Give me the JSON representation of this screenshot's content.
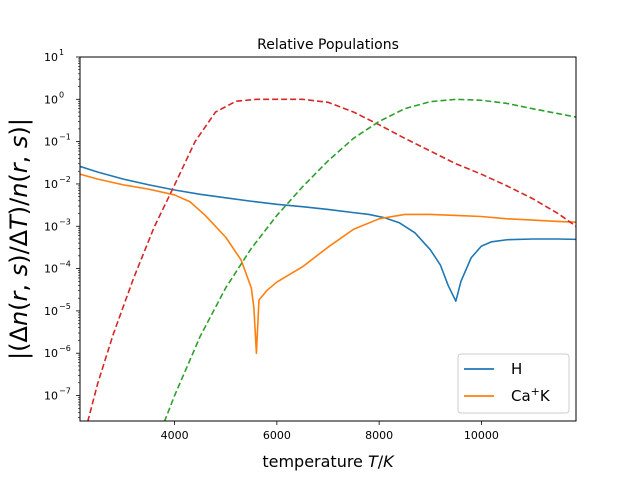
{
  "chart_data": {
    "type": "line",
    "title": "Relative Populations",
    "xlabel": "temperature T/K",
    "ylabel": "|(Δn(r,s)/ΔT)/n(r,s)|",
    "xlim": [
      2150,
      11850
    ],
    "ylim": [
      2.5e-08,
      10
    ],
    "yscale": "log",
    "grid": false,
    "legend_position": "lower-right",
    "x_ticks": [
      {
        "value": 4000,
        "label": "4000"
      },
      {
        "value": 6000,
        "label": "6000"
      },
      {
        "value": 8000,
        "label": "8000"
      },
      {
        "value": 10000,
        "label": "10000"
      }
    ],
    "y_ticks": [
      {
        "value": 1e-07,
        "base": "10",
        "exp": "−7"
      },
      {
        "value": 1e-06,
        "base": "10",
        "exp": "−6"
      },
      {
        "value": 1e-05,
        "base": "10",
        "exp": "−5"
      },
      {
        "value": 0.0001,
        "base": "10",
        "exp": "−4"
      },
      {
        "value": 0.001,
        "base": "10",
        "exp": "−3"
      },
      {
        "value": 0.01,
        "base": "10",
        "exp": "−2"
      },
      {
        "value": 0.1,
        "base": "10",
        "exp": "−1"
      },
      {
        "value": 1,
        "base": "10",
        "exp": "0"
      },
      {
        "value": 10,
        "base": "10",
        "exp": "1"
      }
    ],
    "series": [
      {
        "name": "H",
        "color": "#1f77b4",
        "style": "solid",
        "legend": true,
        "points": [
          [
            2150,
            0.026
          ],
          [
            2500,
            0.019
          ],
          [
            3000,
            0.013
          ],
          [
            3500,
            0.0095
          ],
          [
            4000,
            0.0072
          ],
          [
            4500,
            0.0057
          ],
          [
            5000,
            0.0047
          ],
          [
            5500,
            0.0039
          ],
          [
            6000,
            0.0033
          ],
          [
            6500,
            0.0029
          ],
          [
            7000,
            0.0025
          ],
          [
            7500,
            0.0021
          ],
          [
            7800,
            0.0019
          ],
          [
            8100,
            0.0016
          ],
          [
            8400,
            0.0012
          ],
          [
            8700,
            0.0007
          ],
          [
            9000,
            0.00028
          ],
          [
            9200,
            0.00012
          ],
          [
            9350,
            4e-05
          ],
          [
            9500,
            1.7e-05
          ],
          [
            9600,
            5e-05
          ],
          [
            9800,
            0.00018
          ],
          [
            10000,
            0.00034
          ],
          [
            10200,
            0.00043
          ],
          [
            10500,
            0.00048
          ],
          [
            11000,
            0.0005
          ],
          [
            11500,
            0.0005
          ],
          [
            11850,
            0.00049
          ]
        ]
      },
      {
        "name": "Ca⁺K",
        "color": "#ff7f0e",
        "style": "solid",
        "legend": true,
        "points": [
          [
            2150,
            0.017
          ],
          [
            2500,
            0.013
          ],
          [
            3000,
            0.0095
          ],
          [
            3500,
            0.0075
          ],
          [
            4000,
            0.0055
          ],
          [
            4300,
            0.0038
          ],
          [
            4600,
            0.0018
          ],
          [
            5000,
            0.00055
          ],
          [
            5300,
            0.00016
          ],
          [
            5500,
            3.5e-05
          ],
          [
            5550,
            1.2e-05
          ],
          [
            5600,
            1e-06
          ],
          [
            5650,
            1.8e-05
          ],
          [
            5800,
            3e-05
          ],
          [
            6000,
            4.8e-05
          ],
          [
            6500,
            0.00011
          ],
          [
            7000,
            0.00032
          ],
          [
            7500,
            0.00085
          ],
          [
            8000,
            0.0015
          ],
          [
            8500,
            0.0019
          ],
          [
            9000,
            0.0019
          ],
          [
            9500,
            0.0018
          ],
          [
            10000,
            0.0017
          ],
          [
            10500,
            0.0015
          ],
          [
            11000,
            0.0014
          ],
          [
            11500,
            0.0013
          ],
          [
            11850,
            0.00125
          ]
        ]
      },
      {
        "name": "",
        "color": "#d62728",
        "style": "dashed",
        "legend": false,
        "points": [
          [
            2300,
            2.4e-08
          ],
          [
            2500,
            2e-07
          ],
          [
            2800,
            2.8e-06
          ],
          [
            3200,
            6e-05
          ],
          [
            3600,
            0.00095
          ],
          [
            4000,
            0.0095
          ],
          [
            4400,
            0.1
          ],
          [
            4800,
            0.5
          ],
          [
            5200,
            0.9
          ],
          [
            5600,
            1.0
          ],
          [
            6000,
            1.0
          ],
          [
            6500,
            1.0
          ],
          [
            7000,
            0.85
          ],
          [
            7500,
            0.5
          ],
          [
            8000,
            0.25
          ],
          [
            8500,
            0.12
          ],
          [
            9000,
            0.06
          ],
          [
            9500,
            0.03
          ],
          [
            10000,
            0.017
          ],
          [
            10500,
            0.009
          ],
          [
            11000,
            0.0045
          ],
          [
            11500,
            0.002
          ],
          [
            11850,
            0.001
          ]
        ]
      },
      {
        "name": "",
        "color": "#2ca02c",
        "style": "dashed",
        "legend": false,
        "points": [
          [
            3800,
            2.4e-08
          ],
          [
            4000,
            1e-07
          ],
          [
            4500,
            2.5e-06
          ],
          [
            5000,
            3.5e-05
          ],
          [
            5500,
            0.0003
          ],
          [
            6000,
            0.0018
          ],
          [
            6500,
            0.0085
          ],
          [
            7000,
            0.035
          ],
          [
            7500,
            0.12
          ],
          [
            8000,
            0.3
          ],
          [
            8500,
            0.6
          ],
          [
            9000,
            0.88
          ],
          [
            9500,
            1.0
          ],
          [
            10000,
            0.95
          ],
          [
            10500,
            0.8
          ],
          [
            11000,
            0.6
          ],
          [
            11500,
            0.46
          ],
          [
            11850,
            0.38
          ]
        ]
      }
    ]
  }
}
